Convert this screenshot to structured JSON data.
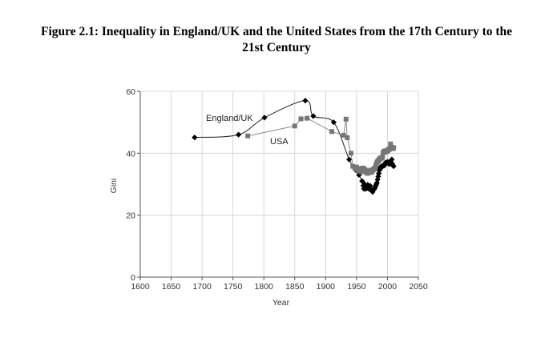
{
  "figure": {
    "title_line1": "Figure 2.1: Inequality in England/UK and the United States from the 17th Century to the",
    "title_line2": "21st Century"
  },
  "chart_data": {
    "type": "line",
    "xlabel": "Year",
    "ylabel": "Gini",
    "xlim": [
      1600,
      2050
    ],
    "ylim": [
      0,
      60
    ],
    "xticks": [
      1600,
      1650,
      1700,
      1750,
      1800,
      1850,
      1900,
      1950,
      2000,
      2050
    ],
    "yticks": [
      0,
      20,
      40,
      60
    ],
    "grid": true,
    "series": [
      {
        "name": "England/UK",
        "marker": "diamond",
        "color": "#000000",
        "points": [
          [
            1688,
            45.1
          ],
          [
            1759,
            46.0
          ],
          [
            1801,
            51.5
          ],
          [
            1867,
            57.0
          ],
          [
            1880,
            52.0
          ],
          [
            1913,
            50.0
          ],
          [
            1938,
            38.0
          ],
          [
            1949,
            34.5
          ],
          [
            1954,
            33.0
          ],
          [
            1959,
            31.0
          ],
          [
            1961,
            29.5
          ],
          [
            1962,
            28.5
          ],
          [
            1963,
            30.0
          ],
          [
            1964,
            29.0
          ],
          [
            1965,
            28.5
          ],
          [
            1966,
            29.5
          ],
          [
            1967,
            28.8
          ],
          [
            1968,
            29.8
          ],
          [
            1969,
            29.0
          ],
          [
            1970,
            28.5
          ],
          [
            1971,
            28.8
          ],
          [
            1972,
            29.5
          ],
          [
            1973,
            28.5
          ],
          [
            1974,
            28.0
          ],
          [
            1975,
            27.8
          ],
          [
            1976,
            27.5
          ],
          [
            1977,
            28.2
          ],
          [
            1978,
            28.5
          ],
          [
            1979,
            28.5
          ],
          [
            1980,
            29.0
          ],
          [
            1981,
            29.5
          ],
          [
            1982,
            30.0
          ],
          [
            1983,
            30.5
          ],
          [
            1984,
            31.5
          ],
          [
            1985,
            32.5
          ],
          [
            1986,
            33.5
          ],
          [
            1987,
            34.5
          ],
          [
            1988,
            35.0
          ],
          [
            1989,
            35.5
          ],
          [
            1990,
            35.8
          ],
          [
            1991,
            35.5
          ],
          [
            1992,
            35.8
          ],
          [
            1993,
            36.0
          ],
          [
            1994,
            36.2
          ],
          [
            1995,
            36.0
          ],
          [
            1996,
            36.5
          ],
          [
            1997,
            37.0
          ],
          [
            1998,
            36.8
          ],
          [
            1999,
            37.0
          ],
          [
            2000,
            37.2
          ],
          [
            2001,
            36.8
          ],
          [
            2002,
            37.0
          ],
          [
            2003,
            36.5
          ],
          [
            2004,
            36.8
          ],
          [
            2005,
            37.5
          ],
          [
            2006,
            37.0
          ],
          [
            2007,
            38.0
          ],
          [
            2008,
            36.5
          ],
          [
            2009,
            36.0
          ],
          [
            2010,
            35.8
          ]
        ]
      },
      {
        "name": "USA",
        "marker": "square",
        "color": "#777777",
        "points": [
          [
            1774,
            45.6
          ],
          [
            1850,
            48.8
          ],
          [
            1860,
            51.1
          ],
          [
            1870,
            51.3
          ],
          [
            1910,
            47.0
          ],
          [
            1929,
            45.8
          ],
          [
            1933,
            51.0
          ],
          [
            1935,
            45.0
          ],
          [
            1941,
            40.0
          ],
          [
            1944,
            35.8
          ],
          [
            1947,
            35.5
          ],
          [
            1948,
            35.0
          ],
          [
            1950,
            35.5
          ],
          [
            1951,
            34.8
          ],
          [
            1952,
            35.0
          ],
          [
            1953,
            34.5
          ],
          [
            1954,
            35.0
          ],
          [
            1955,
            34.8
          ],
          [
            1956,
            34.5
          ],
          [
            1957,
            34.0
          ],
          [
            1958,
            34.2
          ],
          [
            1959,
            34.8
          ],
          [
            1960,
            35.2
          ],
          [
            1961,
            35.0
          ],
          [
            1962,
            34.5
          ],
          [
            1963,
            34.8
          ],
          [
            1964,
            34.5
          ],
          [
            1965,
            34.2
          ],
          [
            1966,
            33.8
          ],
          [
            1967,
            34.0
          ],
          [
            1968,
            33.5
          ],
          [
            1969,
            33.8
          ],
          [
            1970,
            34.2
          ],
          [
            1971,
            34.0
          ],
          [
            1972,
            34.5
          ],
          [
            1973,
            34.0
          ],
          [
            1974,
            33.8
          ],
          [
            1975,
            34.2
          ],
          [
            1976,
            34.5
          ],
          [
            1977,
            34.8
          ],
          [
            1978,
            34.8
          ],
          [
            1979,
            35.0
          ],
          [
            1980,
            35.3
          ],
          [
            1981,
            35.8
          ],
          [
            1982,
            36.5
          ],
          [
            1983,
            37.0
          ],
          [
            1984,
            37.3
          ],
          [
            1985,
            37.5
          ],
          [
            1986,
            37.8
          ],
          [
            1987,
            38.0
          ],
          [
            1988,
            38.2
          ],
          [
            1989,
            38.5
          ],
          [
            1990,
            38.4
          ],
          [
            1991,
            38.5
          ],
          [
            1992,
            38.8
          ],
          [
            1993,
            40.2
          ],
          [
            1994,
            40.5
          ],
          [
            1995,
            40.3
          ],
          [
            1996,
            40.6
          ],
          [
            1997,
            40.8
          ],
          [
            1998,
            40.5
          ],
          [
            1999,
            40.6
          ],
          [
            2000,
            40.8
          ],
          [
            2001,
            41.0
          ],
          [
            2002,
            41.2
          ],
          [
            2003,
            41.3
          ],
          [
            2004,
            41.5
          ],
          [
            2005,
            43.0
          ],
          [
            2006,
            42.0
          ],
          [
            2007,
            41.5
          ],
          [
            2008,
            41.8
          ],
          [
            2009,
            41.5
          ],
          [
            2010,
            41.8
          ]
        ]
      }
    ]
  }
}
